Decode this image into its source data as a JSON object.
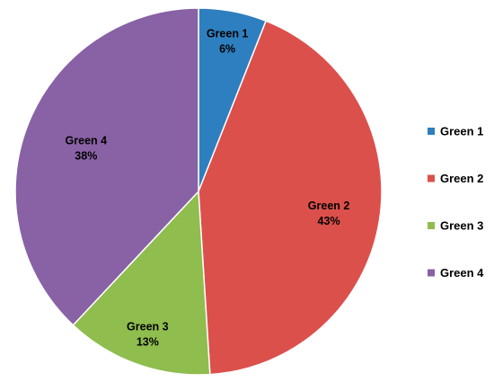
{
  "chart_data": {
    "type": "pie",
    "categories": [
      "Green 1",
      "Green 2",
      "Green 3",
      "Green 4"
    ],
    "values": [
      6,
      43,
      13,
      38
    ],
    "percent_labels": [
      "6%",
      "43%",
      "13%",
      "38%"
    ],
    "colors": [
      "#2e7fbf",
      "#dc504c",
      "#8fbd4e",
      "#8961a5"
    ],
    "start_angle": "top (12 o'clock), clockwise",
    "legend_position": "right"
  }
}
